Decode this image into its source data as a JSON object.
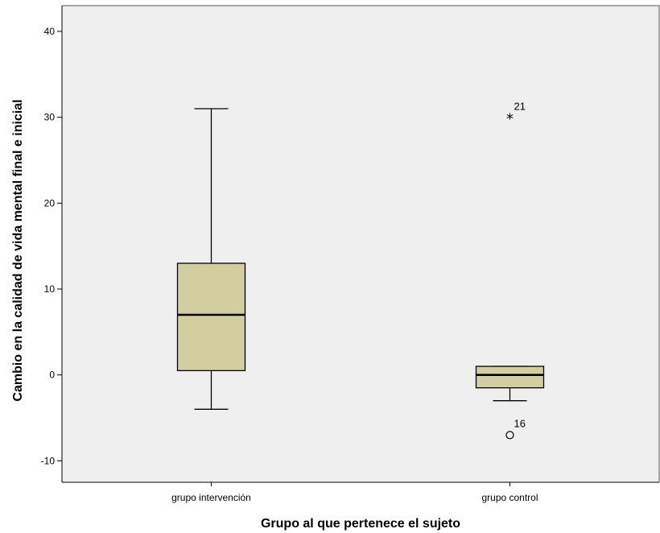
{
  "chart_data": {
    "type": "boxplot",
    "xlabel": "Grupo al que pertenece el sujeto",
    "ylabel": "Cambio en la calidad de vida mental final e inicial",
    "ylim": [
      -12.5,
      43
    ],
    "yticks": [
      40,
      30,
      20,
      10,
      0,
      -10
    ],
    "ytick_labels": [
      "40",
      "30",
      "20",
      "10",
      "0",
      "-10"
    ],
    "categories": [
      "grupo intervención",
      "grupo control"
    ],
    "grid": false,
    "colors": {
      "plot_bg": "#efefef",
      "box_fill": "#d3ce9f",
      "stroke": "#000000"
    },
    "boxes": [
      {
        "category": "grupo intervención",
        "whisker_low": -4,
        "q1": 0.5,
        "median": 7,
        "q3": 13,
        "whisker_high": 31,
        "outliers": [],
        "extremes": []
      },
      {
        "category": "grupo control",
        "whisker_low": -3,
        "q1": -1.5,
        "median": 0,
        "q3": 1,
        "whisker_high": 1,
        "outliers": [
          {
            "value": -7,
            "label": "16"
          }
        ],
        "extremes": [
          {
            "value": 30,
            "label": "21"
          }
        ]
      }
    ]
  }
}
